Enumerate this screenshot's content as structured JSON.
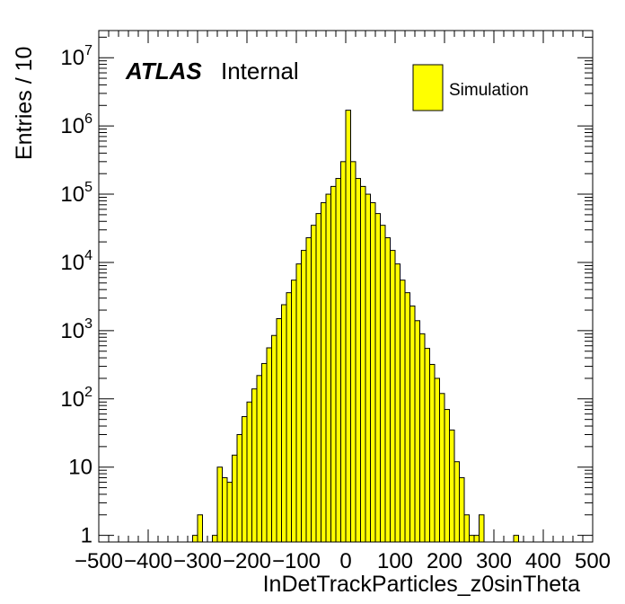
{
  "chart_data": {
    "type": "bar",
    "histogram": true,
    "title": "",
    "xlabel": "InDetTrackParticles_z0sinTheta",
    "ylabel": "Entries / 10",
    "xlim": [
      -500,
      500
    ],
    "ylim": [
      0.8,
      25000000
    ],
    "yscale": "log",
    "bin_width": 10,
    "x_ticks": [
      "−500",
      "−400",
      "−300",
      "−200",
      "−100",
      "0",
      "100",
      "200",
      "300",
      "400",
      "500"
    ],
    "y_ticks": [
      {
        "base": "1",
        "exp": ""
      },
      {
        "base": "10",
        "exp": ""
      },
      {
        "base": "10",
        "exp": "2"
      },
      {
        "base": "10",
        "exp": "3"
      },
      {
        "base": "10",
        "exp": "4"
      },
      {
        "base": "10",
        "exp": "5"
      },
      {
        "base": "10",
        "exp": "6"
      },
      {
        "base": "10",
        "exp": "7"
      }
    ],
    "legend": {
      "position": "top-right",
      "entries": [
        {
          "label": "Simulation",
          "color": "#ffff00"
        }
      ]
    },
    "atlas_label": {
      "bold": "ATLAS",
      "normal": "Internal"
    },
    "fill_color": "#ffff00",
    "line_color": "#000000",
    "series": [
      {
        "name": "Simulation",
        "bin_low_edges": [
          -310,
          -300,
          -270,
          -260,
          -250,
          -240,
          -230,
          -220,
          -210,
          -200,
          -190,
          -180,
          -170,
          -160,
          -150,
          -140,
          -130,
          -120,
          -110,
          -100,
          -90,
          -80,
          -70,
          -60,
          -50,
          -40,
          -30,
          -20,
          -10,
          0,
          10,
          20,
          30,
          40,
          50,
          60,
          70,
          80,
          90,
          100,
          110,
          120,
          130,
          140,
          150,
          160,
          170,
          180,
          190,
          200,
          210,
          220,
          230,
          240,
          250,
          260,
          270,
          340
        ],
        "values": [
          1,
          2,
          1,
          10,
          7,
          6,
          15,
          30,
          55,
          90,
          140,
          220,
          330,
          560,
          850,
          1500,
          2400,
          3600,
          5500,
          9500,
          15000,
          23000,
          35000,
          52000,
          75000,
          100000,
          130000,
          170000,
          300000,
          1700000,
          300000,
          170000,
          130000,
          100000,
          75000,
          52000,
          35000,
          23000,
          15000,
          9500,
          5500,
          3600,
          2300,
          1400,
          900,
          550,
          320,
          200,
          120,
          70,
          35,
          12,
          7,
          2,
          1,
          1,
          2,
          1
        ]
      }
    ]
  }
}
